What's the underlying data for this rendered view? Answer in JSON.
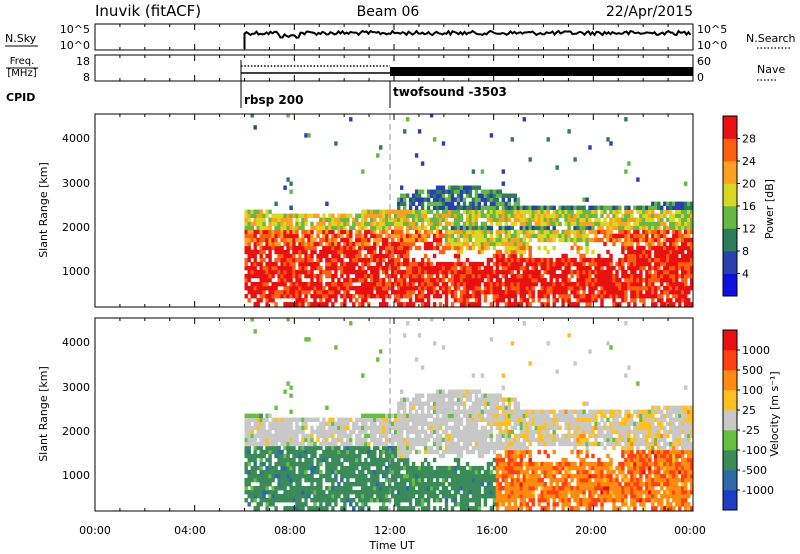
{
  "header": {
    "title": "Inuvik (fitACF)",
    "beam": "Beam 06",
    "date": "22/Apr/2015"
  },
  "sky_panel": {
    "left_label": "N.Sky",
    "left_top_tick": "10^5",
    "left_bottom_tick": "10^0",
    "right_top_tick": "10^5",
    "right_bottom_tick": "10^0",
    "right_label": "N.Search"
  },
  "freq_panel": {
    "left_label_line1": "Freq.",
    "left_label_line2": "[MHz]",
    "left_top_tick": "18",
    "left_bottom_tick": "8",
    "right_top_tick": "60",
    "right_bottom_tick": "0",
    "right_label": "Nave"
  },
  "cpid": {
    "label": "CPID",
    "segments": [
      {
        "name": "rbsp 200",
        "start_hour": 6.0
      },
      {
        "name": "twofsound -3503",
        "start_hour": 12.0
      }
    ]
  },
  "chart_data": [
    {
      "type": "heatmap",
      "name": "power",
      "ylabel": "Slant Range [km]",
      "xlabel": "",
      "x_range_hours": [
        0,
        24
      ],
      "ylim": [
        180,
        4500
      ],
      "yticks": [
        "1000",
        "2000",
        "3000",
        "4000"
      ],
      "colorbar_label": "Power [dB]",
      "colorbar_ticks": [
        "4",
        "8",
        "12",
        "16",
        "20",
        "24",
        "28"
      ],
      "colorbar_colors": [
        "#1010e0",
        "#2a3fb0",
        "#2e7d5a",
        "#66b844",
        "#d8d820",
        "#ffa020",
        "#ff6010",
        "#e81010"
      ],
      "data_start_hour": 6.0
    },
    {
      "type": "heatmap",
      "name": "velocity",
      "ylabel": "Slant Range [km]",
      "xlabel": "Time UT",
      "x_range_hours": [
        0,
        24
      ],
      "ylim": [
        180,
        4500
      ],
      "yticks": [
        "1000",
        "2000",
        "3000",
        "4000"
      ],
      "xticks": [
        "00:00",
        "04:00",
        "08:00",
        "12:00",
        "16:00",
        "20:00",
        "00:00"
      ],
      "colorbar_label": "Velocity [m s⁻¹]",
      "colorbar_ticks": [
        "1000",
        "500",
        "100",
        "25",
        "-25",
        "-100",
        "-500",
        "-1000"
      ],
      "colorbar_colors": [
        "#1f3cc8",
        "#2f6aa8",
        "#3a8a5a",
        "#66c040",
        "#c8c8c8",
        "#ffc020",
        "#ff8c10",
        "#ff4010",
        "#e81010"
      ],
      "data_start_hour": 6.0
    }
  ]
}
